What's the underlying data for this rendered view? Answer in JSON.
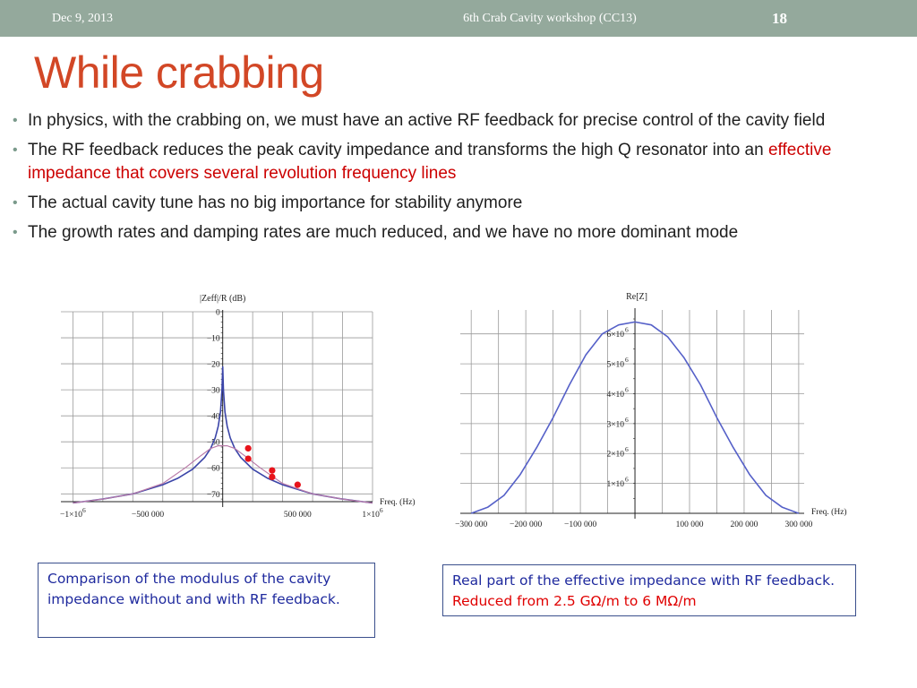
{
  "header": {
    "date": "Dec 9, 2013",
    "workshop": "6th Crab Cavity workshop (CC13)",
    "page_number": "18"
  },
  "title": "While crabbing",
  "bullets": [
    {
      "text": "In physics, with the crabbing on, we must have an active RF feedback for precise control of the cavity field"
    },
    {
      "text": "The RF feedback reduces the peak cavity impedance and transforms the high Q resonator into an ",
      "highlight": "effective impedance that covers several revolution frequency lines"
    },
    {
      "text": "The actual cavity tune has no big importance for stability anymore"
    },
    {
      "text": "The growth rates and damping rates are much reduced, and we have no more dominant mode"
    }
  ],
  "bullet_marker": "•",
  "colors": {
    "header_bg": "#94a99c",
    "title": "#d24726",
    "highlight": "#cc0000",
    "caption_text": "#1f2a9e",
    "series_blue": "#3b45a8",
    "series_pink": "#b97aa8",
    "points": "#e8131b"
  },
  "chart_data": [
    {
      "type": "line",
      "ylabel": "|Zeff|/R (dB)",
      "xlabel": "Freq. (Hz)",
      "xlim": [
        -1080000,
        1000000
      ],
      "ylim": [
        -73,
        0
      ],
      "x_ticks": [
        -1000000,
        -500000,
        500000,
        1000000
      ],
      "x_tick_labels": [
        "-1×10",
        "-500 000",
        "500 000",
        "1×10"
      ],
      "x_tick_exponents": [
        "6",
        "",
        "",
        "6"
      ],
      "y_ticks": [
        0,
        -10,
        -20,
        -30,
        -40,
        -50,
        -60,
        -70
      ],
      "y_tick_labels": [
        "0",
        "-10",
        "-20",
        "-30",
        "-40",
        "-50",
        "-60",
        "-70"
      ],
      "grid": true,
      "series": [
        {
          "color": "#3b45a8",
          "x": [
            -1000000,
            -800000,
            -600000,
            -400000,
            -300000,
            -200000,
            -120000,
            -80000,
            -50000,
            -30000,
            -15000,
            -5000,
            0,
            5000,
            15000,
            30000,
            50000,
            80000,
            120000,
            200000,
            300000,
            400000,
            600000,
            800000,
            1000000
          ],
          "y": [
            -73.5,
            -72,
            -70,
            -66.5,
            -64,
            -60.5,
            -56,
            -52.5,
            -48.5,
            -44,
            -38.5,
            -30,
            -21,
            -30,
            -38.5,
            -44,
            -48.5,
            -52.5,
            -56,
            -60.5,
            -64,
            -66.5,
            -70,
            -72,
            -73.5
          ]
        },
        {
          "color": "#b97aa8",
          "x": [
            -1000000,
            -800000,
            -600000,
            -400000,
            -250000,
            -150000,
            -80000,
            -30000,
            0,
            30000,
            80000,
            150000,
            250000,
            400000,
            600000,
            800000,
            1000000
          ],
          "y": [
            -73.5,
            -72,
            -70,
            -66,
            -60,
            -55.5,
            -52.5,
            -51.5,
            -51.5,
            -51.5,
            -52.5,
            -55.5,
            -60,
            -66,
            -70,
            -72,
            -73.5
          ]
        },
        {
          "color": "#e8131b",
          "x": [
            170000,
            170000,
            330000,
            330000,
            500000
          ],
          "y": [
            -52.5,
            -56.5,
            -61,
            -63.5,
            -66.5
          ]
        }
      ]
    },
    {
      "type": "line",
      "ylabel": "Re[Z]",
      "xlabel": "Freq. (Hz)",
      "xlim": [
        -320000,
        310000
      ],
      "ylim": [
        0,
        6800000
      ],
      "x_ticks": [
        -300000,
        -200000,
        -100000,
        100000,
        200000,
        300000
      ],
      "x_tick_labels": [
        "-300 000",
        "-200 000",
        "-100 000",
        "100 000",
        "200 000",
        "300 000"
      ],
      "y_ticks": [
        1000000,
        2000000,
        3000000,
        4000000,
        5000000,
        6000000
      ],
      "y_tick_labels": [
        "1×10",
        "2×10",
        "3×10",
        "4×10",
        "5×10",
        "6×10"
      ],
      "y_tick_exponent": "6",
      "grid": true,
      "series": [
        {
          "color": "#5560c8",
          "x": [
            -300000,
            -270000,
            -240000,
            -210000,
            -180000,
            -150000,
            -120000,
            -90000,
            -60000,
            -30000,
            0,
            30000,
            60000,
            90000,
            120000,
            150000,
            180000,
            210000,
            240000,
            270000,
            300000
          ],
          "y": [
            0,
            200000,
            600000,
            1300000,
            2200000,
            3200000,
            4300000,
            5300000,
            6000000,
            6300000,
            6400000,
            6300000,
            5900000,
            5200000,
            4300000,
            3200000,
            2200000,
            1300000,
            600000,
            200000,
            0
          ]
        }
      ]
    }
  ],
  "captions": {
    "left": {
      "text": "Comparison of the modulus  of the cavity impedance without and  with RF feedback."
    },
    "right": {
      "text": "Real part of the effective impedance with RF feedback. ",
      "highlight": "Reduced from 2.5 GΩ/m to 6 MΩ/m"
    }
  }
}
